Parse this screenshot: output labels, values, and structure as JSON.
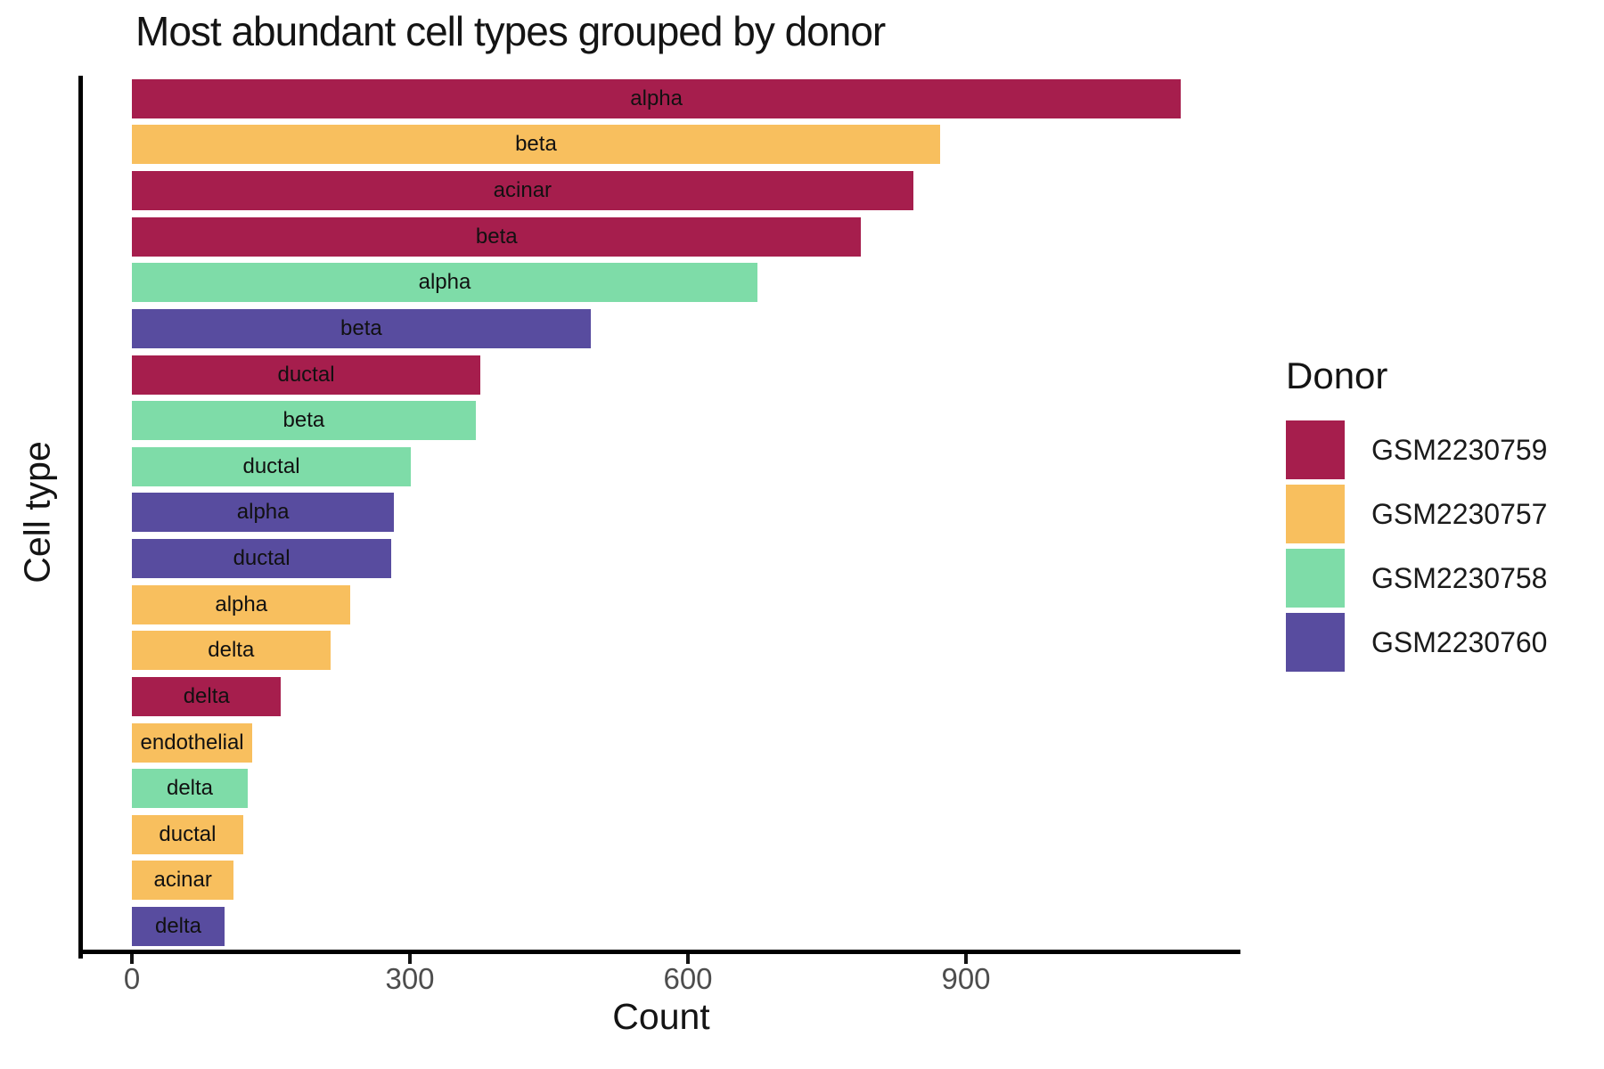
{
  "chart_data": {
    "type": "bar",
    "orientation": "horizontal",
    "title": "Most abundant cell types grouped by donor",
    "xlabel": "Count",
    "ylabel": "Cell type",
    "x_ticks": [
      0,
      300,
      600,
      900
    ],
    "xlim": [
      0,
      1250
    ],
    "grid": false,
    "legend": {
      "title": "Donor",
      "position": "right"
    },
    "donors": [
      {
        "id": "GSM2230759",
        "color": "#A61E4D"
      },
      {
        "id": "GSM2230757",
        "color": "#F8BF5E"
      },
      {
        "id": "GSM2230758",
        "color": "#7EDCA8"
      },
      {
        "id": "GSM2230760",
        "color": "#584C9F"
      }
    ],
    "bars": [
      {
        "cell_type": "alpha",
        "donor": "GSM2230759",
        "value": 1132
      },
      {
        "cell_type": "beta",
        "donor": "GSM2230757",
        "value": 872
      },
      {
        "cell_type": "acinar",
        "donor": "GSM2230759",
        "value": 843
      },
      {
        "cell_type": "beta",
        "donor": "GSM2230759",
        "value": 787
      },
      {
        "cell_type": "alpha",
        "donor": "GSM2230758",
        "value": 675
      },
      {
        "cell_type": "beta",
        "donor": "GSM2230760",
        "value": 495
      },
      {
        "cell_type": "ductal",
        "donor": "GSM2230759",
        "value": 376
      },
      {
        "cell_type": "beta",
        "donor": "GSM2230758",
        "value": 371
      },
      {
        "cell_type": "ductal",
        "donor": "GSM2230758",
        "value": 301
      },
      {
        "cell_type": "alpha",
        "donor": "GSM2230760",
        "value": 283
      },
      {
        "cell_type": "ductal",
        "donor": "GSM2230760",
        "value": 280
      },
      {
        "cell_type": "alpha",
        "donor": "GSM2230757",
        "value": 236
      },
      {
        "cell_type": "delta",
        "donor": "GSM2230757",
        "value": 214
      },
      {
        "cell_type": "delta",
        "donor": "GSM2230759",
        "value": 161
      },
      {
        "cell_type": "endothelial",
        "donor": "GSM2230757",
        "value": 130
      },
      {
        "cell_type": "delta",
        "donor": "GSM2230758",
        "value": 125
      },
      {
        "cell_type": "ductal",
        "donor": "GSM2230757",
        "value": 120
      },
      {
        "cell_type": "acinar",
        "donor": "GSM2230757",
        "value": 110
      },
      {
        "cell_type": "delta",
        "donor": "GSM2230760",
        "value": 100
      }
    ]
  }
}
